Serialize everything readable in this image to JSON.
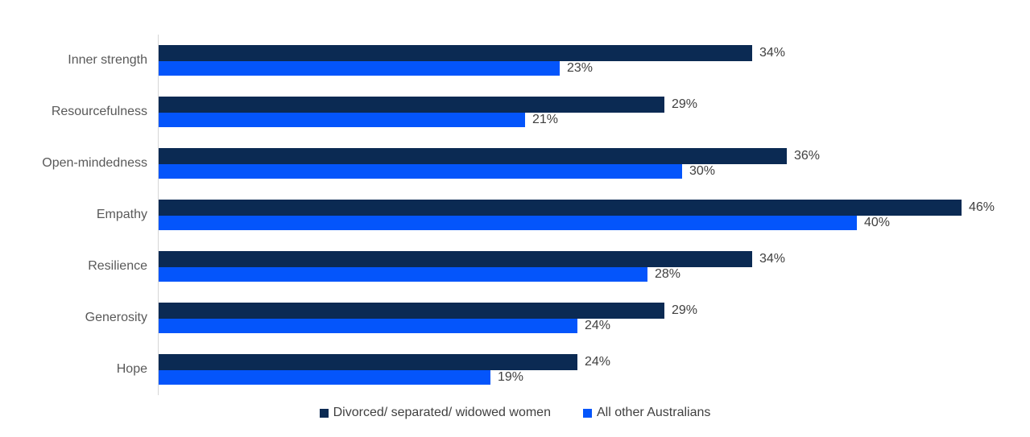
{
  "chart_data": {
    "type": "bar",
    "orientation": "horizontal",
    "title": "",
    "xlabel": "",
    "ylabel": "",
    "grid": false,
    "legend_position": "bottom",
    "value_suffix": "%",
    "xlim": [
      0,
      50
    ],
    "axis_line_color": "#d6d6d6",
    "category_label_color": "#595959",
    "value_label_color": "#404040",
    "categories": [
      "Inner strength",
      "Resourcefulness",
      "Open-mindedness",
      "Empathy",
      "Resilience",
      "Generosity",
      "Hope"
    ],
    "series": [
      {
        "name": "Divorced/ separated/ widowed women",
        "color": "#0b2a53",
        "values": [
          34,
          29,
          36,
          46,
          34,
          29,
          24
        ]
      },
      {
        "name": "All other Australians",
        "color": "#0455fb",
        "values": [
          23,
          21,
          30,
          40,
          28,
          24,
          19
        ]
      }
    ]
  }
}
